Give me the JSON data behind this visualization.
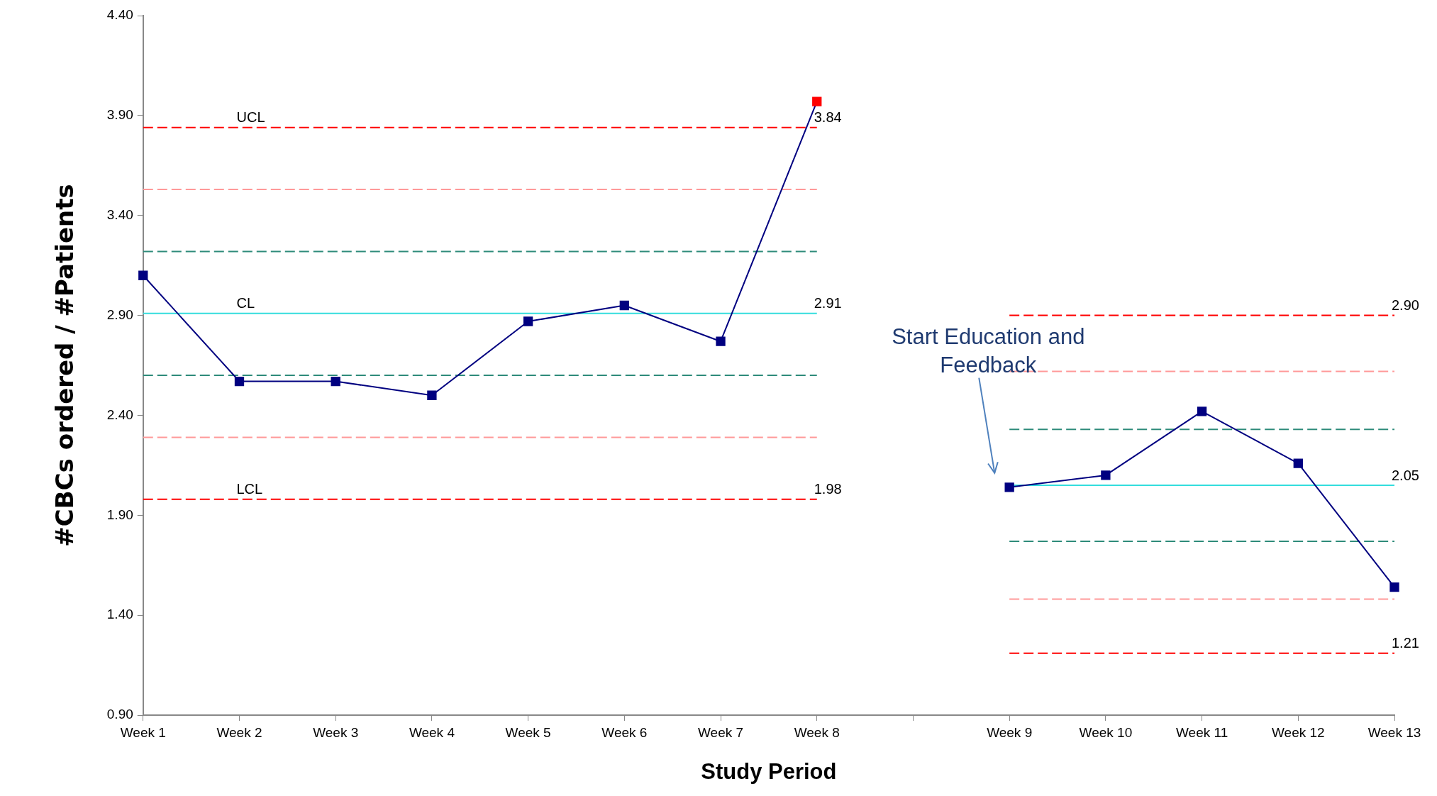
{
  "chart_data": {
    "type": "line",
    "xlabel": "Study Period",
    "ylabel": "#CBCs ordered / #Patients",
    "categories": [
      "Week 1",
      "Week 2",
      "Week 3",
      "Week 4",
      "Week 5",
      "Week 6",
      "Week 7",
      "Week 8",
      null,
      "Week 9",
      "Week 10",
      "Week 11",
      "Week 12",
      "Week 13"
    ],
    "ylim": [
      0.9,
      4.4
    ],
    "yticks": [
      {
        "value": 0.9,
        "label": "0.90"
      },
      {
        "value": 1.4,
        "label": "1.40"
      },
      {
        "value": 1.9,
        "label": "1.90"
      },
      {
        "value": 2.4,
        "label": "2.40"
      },
      {
        "value": 2.9,
        "label": "2.90"
      },
      {
        "value": 3.4,
        "label": "3.40"
      },
      {
        "value": 3.9,
        "label": "3.90"
      },
      {
        "value": 4.4,
        "label": "4.40"
      }
    ],
    "grid": false,
    "legend": false,
    "series": [
      {
        "color": "#000080",
        "marker": "square",
        "line_style": "solid",
        "colors": [
          "#000080",
          "#000080",
          "#000080",
          "#000080",
          "#000080",
          "#000080",
          "#000080",
          "#ff0000",
          "#000080",
          "#000080",
          "#000080",
          "#000080",
          "#000080",
          "#000080"
        ],
        "values": [
          3.1,
          2.57,
          2.57,
          2.5,
          2.87,
          2.95,
          2.77,
          3.97,
          null,
          2.04,
          2.1,
          2.42,
          2.16,
          1.54
        ]
      },
      {
        "color": "#ff0000",
        "marker": "none",
        "line_style": "dashed",
        "values": [
          3.84,
          3.84,
          3.84,
          3.84,
          3.84,
          3.84,
          3.84,
          3.84,
          null,
          null,
          null,
          null,
          null,
          null
        ]
      },
      {
        "color": "#ff9999",
        "marker": "none",
        "line_style": "dashed",
        "values": [
          3.53,
          3.53,
          3.53,
          3.53,
          3.53,
          3.53,
          3.53,
          3.53,
          null,
          null,
          null,
          null,
          null,
          null
        ]
      },
      {
        "color": "#2e8b7a",
        "marker": "none",
        "line_style": "dashed",
        "values": [
          3.22,
          3.22,
          3.22,
          3.22,
          3.22,
          3.22,
          3.22,
          3.22,
          null,
          null,
          null,
          null,
          null,
          null
        ]
      },
      {
        "color": "#33dddd",
        "marker": "none",
        "line_style": "solid",
        "values": [
          2.91,
          2.91,
          2.91,
          2.91,
          2.91,
          2.91,
          2.91,
          2.91,
          null,
          null,
          null,
          null,
          null,
          null
        ]
      },
      {
        "color": "#2e8b7a",
        "marker": "none",
        "line_style": "dashed",
        "values": [
          2.6,
          2.6,
          2.6,
          2.6,
          2.6,
          2.6,
          2.6,
          2.6,
          null,
          null,
          null,
          null,
          null,
          null
        ]
      },
      {
        "color": "#ff9999",
        "marker": "none",
        "line_style": "dashed",
        "values": [
          2.29,
          2.29,
          2.29,
          2.29,
          2.29,
          2.29,
          2.29,
          2.29,
          null,
          null,
          null,
          null,
          null,
          null
        ]
      },
      {
        "color": "#ff0000",
        "marker": "none",
        "line_style": "dashed",
        "values": [
          1.98,
          1.98,
          1.98,
          1.98,
          1.98,
          1.98,
          1.98,
          1.98,
          null,
          null,
          null,
          null,
          null,
          null
        ]
      },
      {
        "color": "#ff0000",
        "marker": "none",
        "line_style": "dashed",
        "values": [
          null,
          null,
          null,
          null,
          null,
          null,
          null,
          null,
          null,
          2.9,
          2.9,
          2.9,
          2.9,
          2.9
        ]
      },
      {
        "color": "#ff9999",
        "marker": "none",
        "line_style": "dashed",
        "values": [
          null,
          null,
          null,
          null,
          null,
          null,
          null,
          null,
          null,
          2.62,
          2.62,
          2.62,
          2.62,
          2.62
        ]
      },
      {
        "color": "#2e8b7a",
        "marker": "none",
        "line_style": "dashed",
        "values": [
          null,
          null,
          null,
          null,
          null,
          null,
          null,
          null,
          null,
          2.33,
          2.33,
          2.33,
          2.33,
          2.33
        ]
      },
      {
        "color": "#33dddd",
        "marker": "none",
        "line_style": "solid",
        "values": [
          null,
          null,
          null,
          null,
          null,
          null,
          null,
          null,
          null,
          2.05,
          2.05,
          2.05,
          2.05,
          2.05
        ]
      },
      {
        "color": "#2e8b7a",
        "marker": "none",
        "line_style": "dashed",
        "values": [
          null,
          null,
          null,
          null,
          null,
          null,
          null,
          null,
          null,
          1.77,
          1.77,
          1.77,
          1.77,
          1.77
        ]
      },
      {
        "color": "#ff9999",
        "marker": "none",
        "line_style": "dashed",
        "values": [
          null,
          null,
          null,
          null,
          null,
          null,
          null,
          null,
          null,
          1.48,
          1.48,
          1.48,
          1.48,
          1.48
        ]
      },
      {
        "color": "#ff0000",
        "marker": "none",
        "line_style": "dashed",
        "values": [
          null,
          null,
          null,
          null,
          null,
          null,
          null,
          null,
          null,
          1.21,
          1.21,
          1.21,
          1.21,
          1.21
        ]
      }
    ],
    "annotations": [
      {
        "text": "UCL",
        "x": "Week 2",
        "y": 3.84
      },
      {
        "text": "CL",
        "x": "Week 2",
        "y": 2.91
      },
      {
        "text": "LCL",
        "x": "Week 2",
        "y": 1.98
      },
      {
        "text": "3.84",
        "x": "Week 8",
        "y": 3.84
      },
      {
        "text": "2.91",
        "x": "Week 8",
        "y": 2.91
      },
      {
        "text": "1.98",
        "x": "Week 8",
        "y": 1.98
      },
      {
        "text": "2.90",
        "x": "Week 13",
        "y": 2.9
      },
      {
        "text": "2.05",
        "x": "Week 13",
        "y": 2.05
      },
      {
        "text": "1.21",
        "x": "Week 13",
        "y": 1.21
      },
      "Start Education and Feedback"
    ]
  }
}
